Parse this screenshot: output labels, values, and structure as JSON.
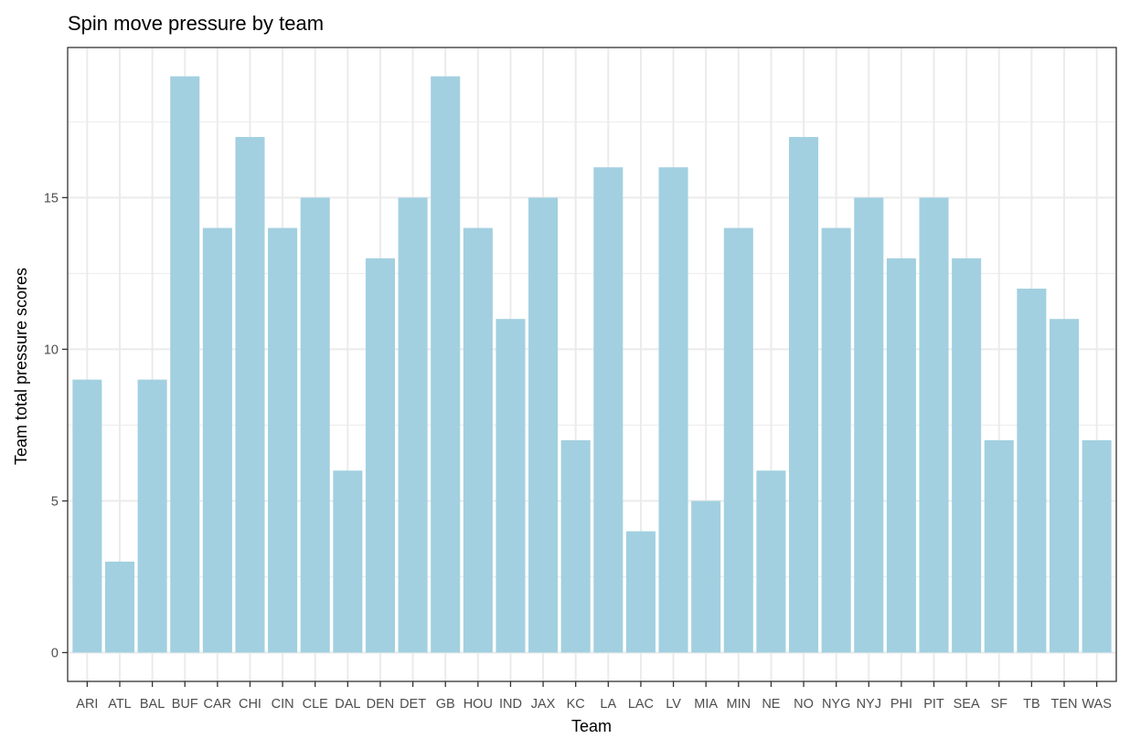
{
  "chart_data": {
    "type": "bar",
    "title": "Spin move pressure by team",
    "xlabel": "Team",
    "ylabel": "Team total pressure scores",
    "categories": [
      "ARI",
      "ATL",
      "BAL",
      "BUF",
      "CAR",
      "CHI",
      "CIN",
      "CLE",
      "DAL",
      "DEN",
      "DET",
      "GB",
      "HOU",
      "IND",
      "JAX",
      "KC",
      "LA",
      "LAC",
      "LV",
      "MIA",
      "MIN",
      "NE",
      "NO",
      "NYG",
      "NYJ",
      "PHI",
      "PIT",
      "SEA",
      "SF",
      "TB",
      "TEN",
      "WAS"
    ],
    "values": [
      9,
      3,
      9,
      19,
      14,
      17,
      14,
      15,
      6,
      13,
      15,
      19,
      14,
      11,
      15,
      7,
      16,
      4,
      16,
      5,
      14,
      6,
      17,
      14,
      15,
      13,
      15,
      13,
      7,
      12,
      11,
      7
    ],
    "yticks": [
      0,
      5,
      10,
      15
    ],
    "ylim": [
      -0.95,
      19.95
    ],
    "grid": true,
    "bar_color": "#a2d0e0",
    "legend": "none"
  }
}
